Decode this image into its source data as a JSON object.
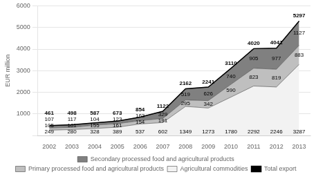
{
  "chart_data": {
    "type": "area",
    "stacked": true,
    "ylabel": "EUR million",
    "x": [
      2002,
      2003,
      2004,
      2005,
      2006,
      2007,
      2008,
      2009,
      2010,
      2011,
      2012,
      2013
    ],
    "xlim": [
      2001.5,
      2013.5
    ],
    "xticks": [
      2002,
      2003,
      2004,
      2005,
      2006,
      2007,
      2008,
      2009,
      2010,
      2011,
      2012,
      2013
    ],
    "ylim": [
      0,
      6000
    ],
    "yticks": [
      {
        "value": 0,
        "label": ""
      },
      1000,
      2000,
      3000,
      4000,
      5000,
      6000
    ],
    "grid": "y",
    "legend": "bottom",
    "data_labels": true,
    "series": [
      {
        "name": "Agricultural commodities",
        "color": "#f2f2f2",
        "values": [
          249,
          280,
          328,
          389,
          537,
          602,
          1349,
          1273,
          1780,
          2292,
          2246,
          3287
        ]
      },
      {
        "name": "Primary processed food and agricultural products",
        "color": "#bfbfbf",
        "values": [
          105,
          101,
          155,
          161,
          154,
          191,
          295,
          342,
          590,
          823,
          819,
          883
        ]
      },
      {
        "name": "Secondary processed food and agricultural products",
        "color": "#808080",
        "values": [
          107,
          117,
          104,
          123,
          163,
          329,
          519,
          626,
          740,
          905,
          977,
          1127
        ]
      },
      {
        "name": "Total export",
        "type": "line",
        "color": "#000000",
        "values": [
          461,
          498,
          587,
          673,
          854,
          1122,
          2162,
          2241,
          3110,
          4020,
          4041,
          5297
        ]
      }
    ]
  }
}
